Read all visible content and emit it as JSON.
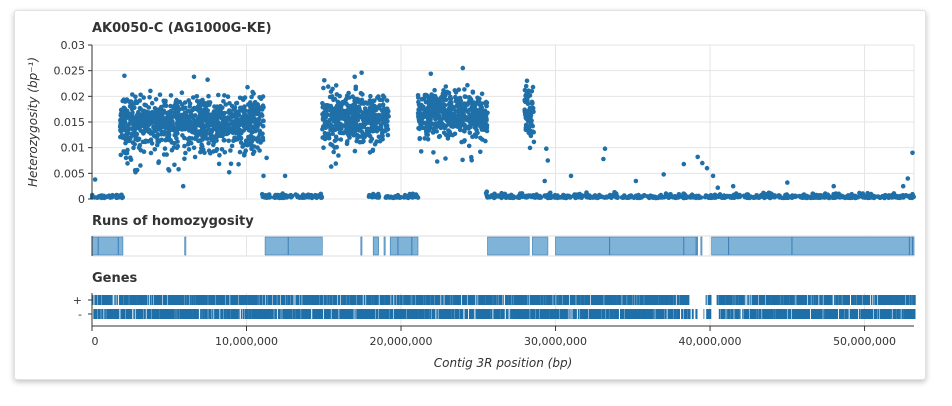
{
  "chart_data": [
    {
      "type": "scatter",
      "title": "AK0050-C (AG1000G-KE)",
      "ylabel": "Heterozygosity (bp⁻¹)",
      "ylim": [
        0,
        0.03
      ],
      "xlim": [
        0,
        53200000
      ],
      "grid": true,
      "yticks": [
        {
          "v": 0,
          "label": "0"
        },
        {
          "v": 0.005,
          "label": "0.005"
        },
        {
          "v": 0.01,
          "label": "0.01"
        },
        {
          "v": 0.015,
          "label": "0.015"
        },
        {
          "v": 0.02,
          "label": "0.02"
        },
        {
          "v": 0.025,
          "label": "0.025"
        },
        {
          "v": 0.03,
          "label": "0.03"
        }
      ],
      "point_color": "#1f6fa8",
      "low_segments": [
        [
          0,
          2000000
        ],
        [
          11000000,
          14900000
        ],
        [
          17900000,
          18600000
        ],
        [
          19000000,
          21100000
        ],
        [
          25500000,
          30000000
        ],
        [
          29500000,
          53200000
        ]
      ],
      "high_segments": [
        {
          "range": [
            1800000,
            11100000
          ],
          "mean": 0.0148,
          "sd": 0.0024
        },
        {
          "range": [
            14900000,
            19200000
          ],
          "mean": 0.0157,
          "sd": 0.0025
        },
        {
          "range": [
            21100000,
            25600000
          ],
          "mean": 0.0165,
          "sd": 0.0022
        },
        {
          "range": [
            28000000,
            28600000
          ],
          "mean": 0.017,
          "sd": 0.0025
        }
      ],
      "outliers": [
        {
          "x": 200000,
          "y": 0.0038
        },
        {
          "x": 2100000,
          "y": 0.024
        },
        {
          "x": 6600000,
          "y": 0.0238
        },
        {
          "x": 5900000,
          "y": 0.0025
        },
        {
          "x": 11100000,
          "y": 0.0045
        },
        {
          "x": 11300000,
          "y": 0.008
        },
        {
          "x": 12500000,
          "y": 0.0045
        },
        {
          "x": 17000000,
          "y": 0.0238
        },
        {
          "x": 24000000,
          "y": 0.0255
        },
        {
          "x": 28100000,
          "y": 0.022
        },
        {
          "x": 29400000,
          "y": 0.0098
        },
        {
          "x": 29500000,
          "y": 0.0075
        },
        {
          "x": 29300000,
          "y": 0.0035
        },
        {
          "x": 31000000,
          "y": 0.0045
        },
        {
          "x": 33200000,
          "y": 0.0098
        },
        {
          "x": 33100000,
          "y": 0.0078
        },
        {
          "x": 35200000,
          "y": 0.0035
        },
        {
          "x": 37000000,
          "y": 0.0048
        },
        {
          "x": 38300000,
          "y": 0.0068
        },
        {
          "x": 39200000,
          "y": 0.0082
        },
        {
          "x": 39500000,
          "y": 0.007
        },
        {
          "x": 39800000,
          "y": 0.006
        },
        {
          "x": 40200000,
          "y": 0.0045
        },
        {
          "x": 40500000,
          "y": 0.0022
        },
        {
          "x": 41500000,
          "y": 0.0025
        },
        {
          "x": 45000000,
          "y": 0.0032
        },
        {
          "x": 48000000,
          "y": 0.0025
        },
        {
          "x": 52500000,
          "y": 0.0025
        },
        {
          "x": 52800000,
          "y": 0.004
        },
        {
          "x": 53100000,
          "y": 0.009
        }
      ]
    },
    {
      "type": "bar",
      "title": "Runs of homozygosity",
      "color": "#7fb3d8",
      "edge_color": "#3a7db5",
      "runs": [
        [
          0,
          2000000
        ],
        [
          6000000,
          6060000
        ],
        [
          11200000,
          14900000
        ],
        [
          17400000,
          17470000
        ],
        [
          18200000,
          18550000
        ],
        [
          18900000,
          18980000
        ],
        [
          19300000,
          21100000
        ],
        [
          25600000,
          28300000
        ],
        [
          28500000,
          29500000
        ],
        [
          30000000,
          39200000
        ],
        [
          39400000,
          39470000
        ],
        [
          40100000,
          53200000
        ]
      ],
      "dividers": [
        400000,
        1700000,
        12700000,
        19800000,
        20700000,
        33500000,
        38300000,
        39100000,
        41200000,
        45300000,
        52900000,
        53100000
      ]
    },
    {
      "type": "bar",
      "title": "Genes",
      "xlabel": "Contig 3R position (bp)",
      "strand_labels": [
        "+",
        "-"
      ],
      "color": "#1f6fa8",
      "gene_gaps": [
        [
          38600000,
          39700000
        ],
        [
          40000000,
          40500000
        ]
      ],
      "xticks": [
        {
          "v": 0,
          "label": "0"
        },
        {
          "v": 10000000,
          "label": "10,000,000"
        },
        {
          "v": 20000000,
          "label": "20,000,000"
        },
        {
          "v": 30000000,
          "label": "30,000,000"
        },
        {
          "v": 40000000,
          "label": "40,000,000"
        },
        {
          "v": 50000000,
          "label": "50,000,000"
        }
      ]
    }
  ]
}
